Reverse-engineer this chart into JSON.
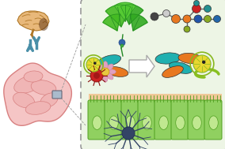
{
  "bg_color": "#ffffff",
  "box_bg": "#edf5e5",
  "arrow_color": "#4a8fa8",
  "brain_color": "#e8b87a",
  "brain_border": "#b07828",
  "intestine_color": "#f5c5c5",
  "intestine_border": "#d88080",
  "cell_color": "#90d060",
  "cell_border": "#50a020",
  "cell_nucleus": "#c0e890",
  "salmon_color": "#f0c898",
  "bacteria_teal": "#20b0b0",
  "bacteria_orange": "#e87820",
  "bacteria_lime": "#88c020",
  "kiwi_outer": "#88b820",
  "kiwi_inner": "#e8d830",
  "kiwi_eye": "#222222",
  "virus_red": "#cc2222",
  "flower_pink": "#e0a0c0",
  "flower_center": "#e8c840",
  "node_dark": "#444444",
  "node_light": "#cccccc",
  "node_orange": "#e87820",
  "node_red": "#cc2222",
  "node_blue": "#2255aa",
  "node_green": "#88aa22",
  "node_teal": "#229090",
  "node_slate": "#556677",
  "neuron_color": "#334466",
  "mag_color": "#aabbcc"
}
